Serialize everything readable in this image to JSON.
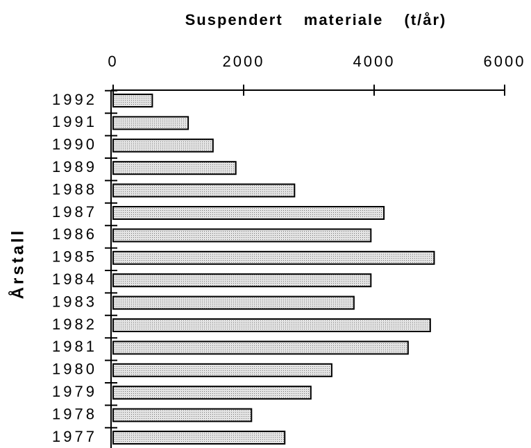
{
  "chart_data": {
    "type": "bar",
    "orientation": "horizontal",
    "title": "Suspendert materiale (t/år)",
    "y_label": "Årstall",
    "categories": [
      "1992",
      "1991",
      "1990",
      "1989",
      "1988",
      "1987",
      "1986",
      "1985",
      "1984",
      "1983",
      "1982",
      "1981",
      "1980",
      "1979",
      "1978",
      "1977"
    ],
    "values": [
      600,
      1150,
      1530,
      1880,
      2780,
      4150,
      3950,
      4920,
      3950,
      3690,
      4860,
      4520,
      3350,
      3030,
      2120,
      2630
    ],
    "color": "#cfcfcf",
    "xlim": [
      0,
      6000
    ],
    "xticks": [
      0,
      2000,
      4000,
      6000
    ],
    "grid": false
  }
}
